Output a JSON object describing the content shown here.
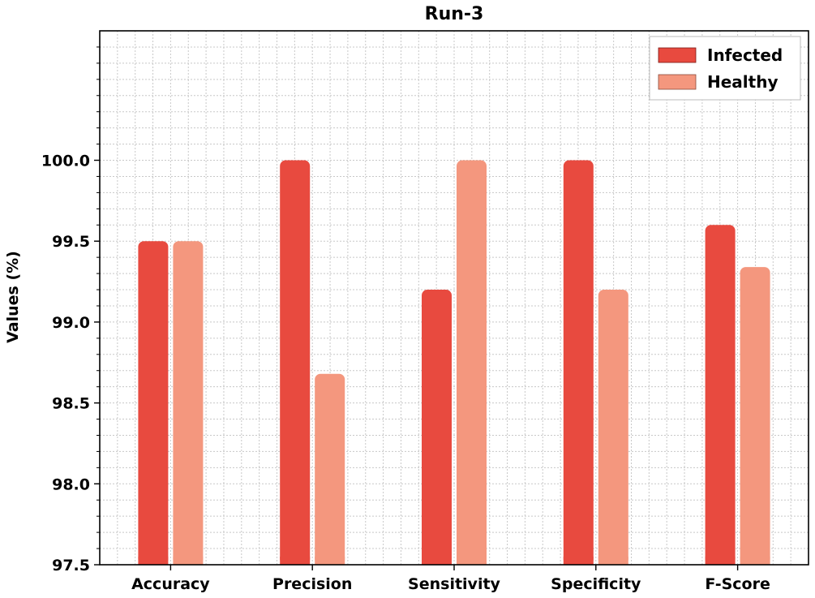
{
  "chart_data": {
    "type": "bar",
    "title": "Run-3",
    "xlabel": "",
    "ylabel": "Values (%)",
    "categories": [
      "Accuracy",
      "Precision",
      "Sensitivity",
      "Specificity",
      "F-Score"
    ],
    "series": [
      {
        "name": "Infected",
        "color": "#e84a3f",
        "values": [
          99.5,
          100.0,
          99.2,
          100.0,
          99.6
        ]
      },
      {
        "name": "Healthy",
        "color": "#f4977e",
        "values": [
          99.5,
          98.68,
          100.0,
          99.2,
          99.34
        ]
      }
    ],
    "ylim": [
      97.5,
      100.8
    ],
    "yticks": [
      "97.5",
      "98.0",
      "98.5",
      "99.0",
      "99.5",
      "100.0"
    ],
    "grid": true,
    "legend_position": "top-right"
  }
}
